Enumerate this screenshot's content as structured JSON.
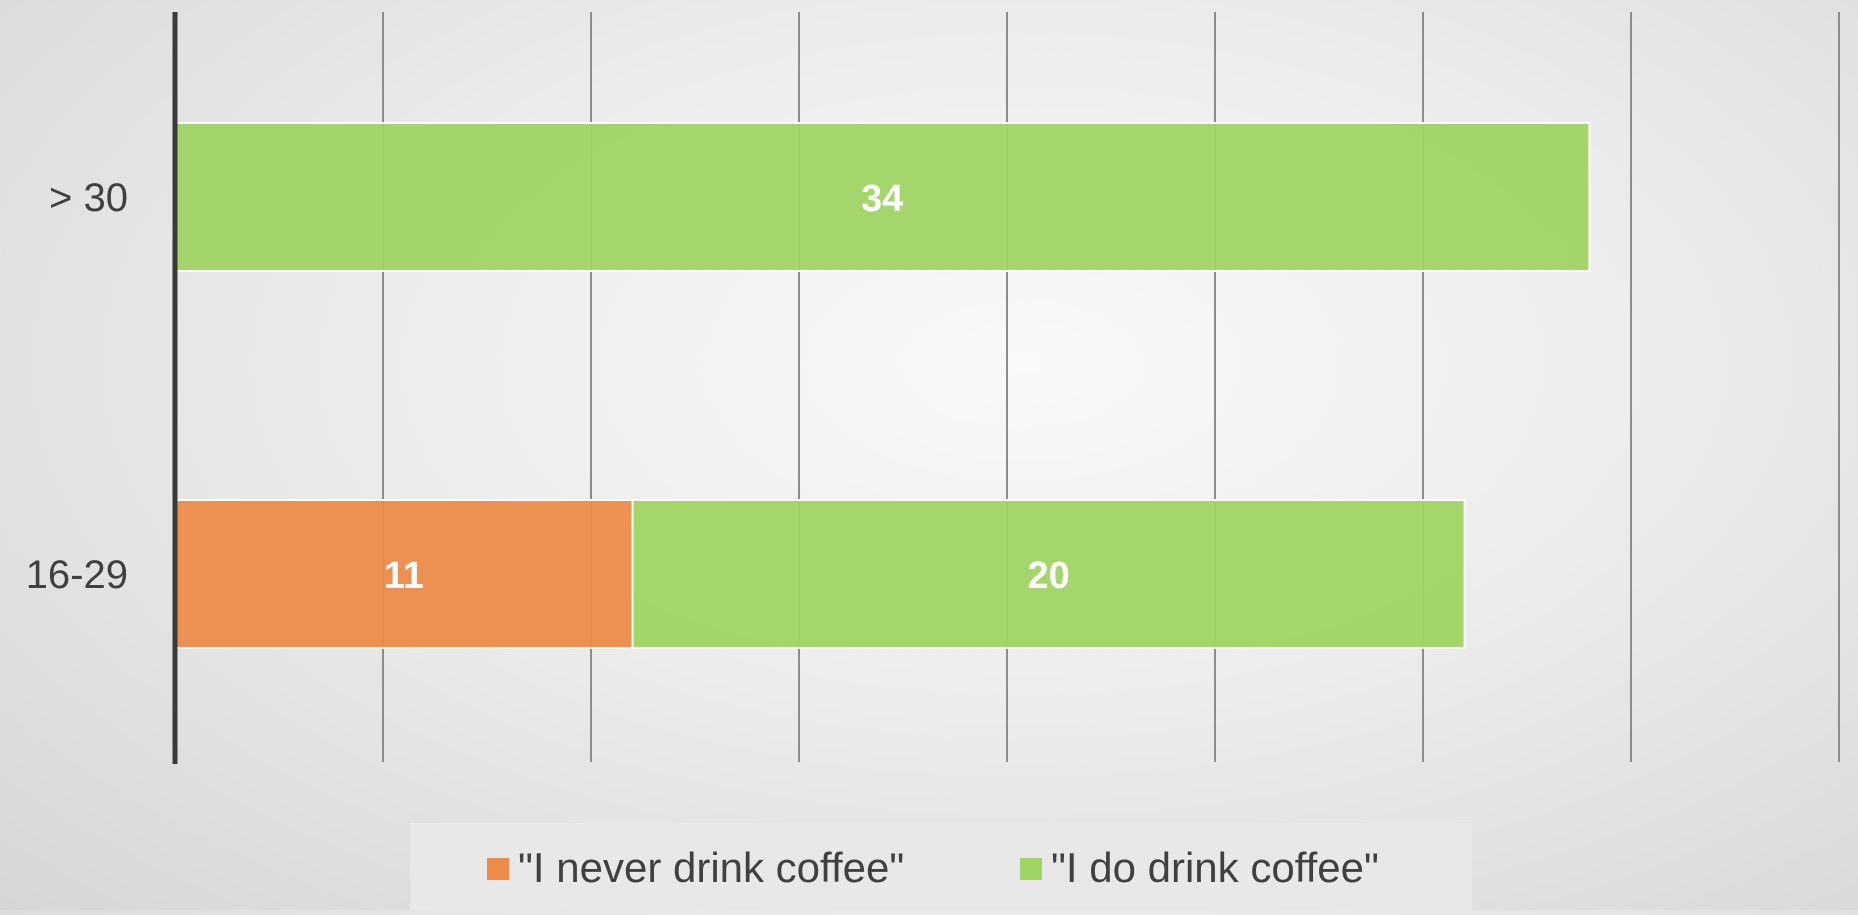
{
  "chart_data": {
    "type": "bar",
    "orientation": "horizontal",
    "stacked": true,
    "categories": [
      "> 30",
      "16-29"
    ],
    "series": [
      {
        "name": "\"I never drink coffee\"",
        "values": [
          0,
          11
        ],
        "color": "#ed8c4a"
      },
      {
        "name": "\"I do drink coffee\"",
        "values": [
          34,
          20
        ],
        "color": "#9fd464"
      }
    ],
    "xlim": [
      0,
      40
    ],
    "x_tick_step": 5,
    "x_tick_labels_shown": false,
    "grid": true,
    "data_labels": true,
    "legend_position": "bottom",
    "title": "",
    "xlabel": "",
    "ylabel": ""
  },
  "colors": {
    "gridline": "#8c8c8c",
    "axis_line": "#3a3a3a",
    "category_text": "#404040",
    "data_label_text": "#ffffff",
    "legend_text": "#404040",
    "legend_box": "#e8e8e8"
  }
}
